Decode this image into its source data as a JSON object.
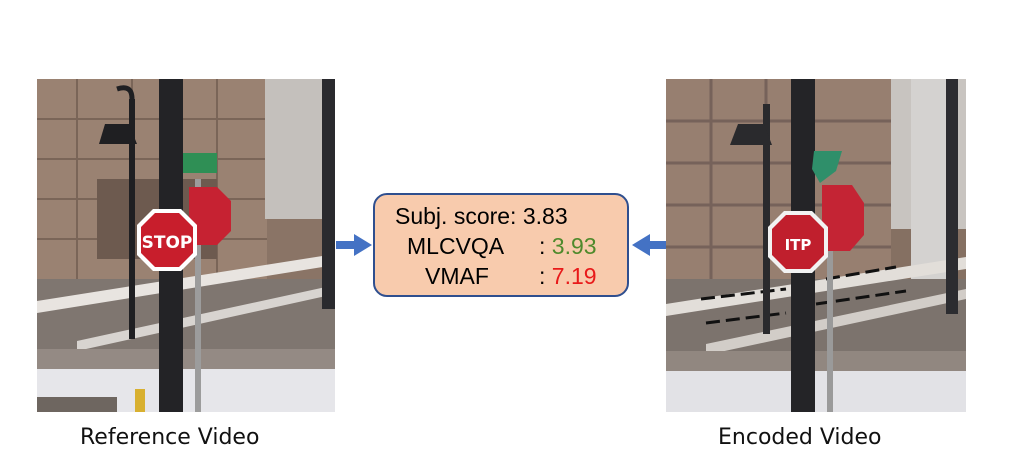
{
  "colors": {
    "box_fill": "#f8cbad",
    "box_border": "#2f4f8f",
    "arrow": "#4472c4",
    "good_value": "#4f8a2c",
    "bad_value": "#e81a1a"
  },
  "left_panel": {
    "caption": "Reference Video",
    "sign_text": "STOP"
  },
  "right_panel": {
    "caption": "Encoded Video",
    "sign_text": "ITP"
  },
  "scores": {
    "subj_label": "Subj. score:",
    "subj_value": "3.83",
    "mlcvqa_label": "MLCVQA",
    "mlcvqa_value": "3.93",
    "vmaf_label": "VMAF",
    "vmaf_value": "7.19",
    "sep": ":"
  }
}
